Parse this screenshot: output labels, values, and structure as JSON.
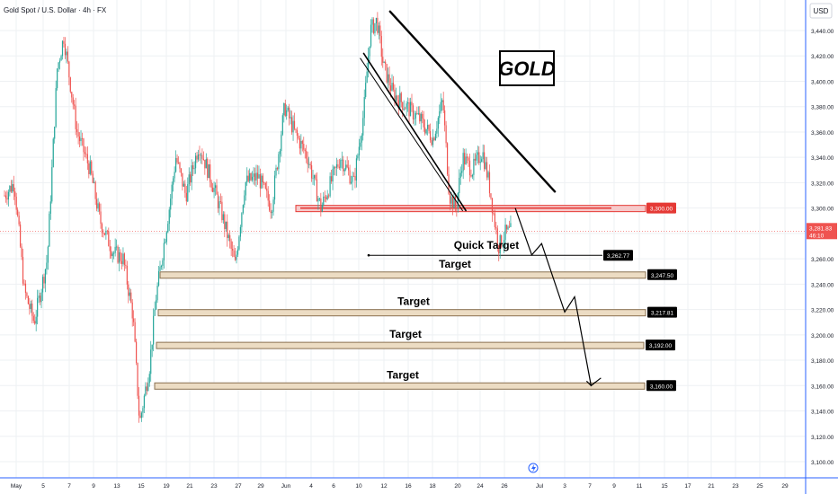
{
  "header": {
    "symbol_title": "Gold Spot / U.S. Dollar · 4h · FX",
    "currency": "USD"
  },
  "badge": {
    "text": "GOLD"
  },
  "colors": {
    "up": "#26a69a",
    "down": "#ef5350",
    "resistance": "#e53935",
    "resistance_fill": "#f6caca",
    "target_fill": "#ecdcc3",
    "target_stroke": "#8a7050",
    "axis_text": "#131722",
    "grid": "#eef0f3",
    "line": "#000000"
  },
  "chart_data": {
    "type": "candlestick",
    "title": "Gold Spot / U.S. Dollar · 4h · FX",
    "ylabel": "USD",
    "ylim": [
      3097,
      3458
    ],
    "x_ticks": [
      "May",
      "5",
      "7",
      "9",
      "13",
      "15",
      "19",
      "21",
      "23",
      "27",
      "29",
      "Jun",
      "4",
      "6",
      "10",
      "12",
      "16",
      "18",
      "20",
      "24",
      "26",
      "Jul",
      "3",
      "7",
      "9",
      "11",
      "15",
      "17",
      "21",
      "23",
      "25",
      "29"
    ],
    "y_ticks": [
      3100,
      3120,
      3140,
      3160,
      3180,
      3200,
      3220,
      3240,
      3260,
      3280,
      3300,
      3320,
      3340,
      3360,
      3380,
      3400,
      3420,
      3440
    ],
    "y_tick_labels": [
      "3,100.00",
      "3,120.00",
      "3,140.00",
      "3,160.00",
      "3,180.00",
      "3,200.00",
      "3,220.00",
      "3,240.00",
      "3,260.00",
      "3,280.00",
      "3,300.00",
      "3,320.00",
      "3,340.00",
      "3,360.00",
      "3,380.00",
      "3,400.00",
      "3,420.00",
      "3,440.00"
    ],
    "current_price": {
      "value": 3281.83,
      "label": "3,281.83",
      "countdown": "46:10"
    },
    "resistance": {
      "value": 3300.0,
      "label": "3,300.00"
    },
    "quick_target": {
      "value": 3262.77,
      "label": "3,262.77",
      "text": "Quick Target"
    },
    "targets": [
      {
        "value": 3247.5,
        "label": "3,247.50",
        "text": "Target"
      },
      {
        "value": 3217.81,
        "label": "3,217.81",
        "text": "Target"
      },
      {
        "value": 3192.0,
        "label": "3,192.00",
        "text": "Target"
      },
      {
        "value": 3160.0,
        "label": "3,160.00",
        "text": "Target"
      }
    ],
    "price_path": [
      {
        "t": 0.0,
        "p": 3310
      },
      {
        "t": 1.5,
        "p": 3320
      },
      {
        "t": 3.0,
        "p": 3235
      },
      {
        "t": 4.5,
        "p": 3210
      },
      {
        "t": 6.5,
        "p": 3260
      },
      {
        "t": 8.0,
        "p": 3410
      },
      {
        "t": 9.0,
        "p": 3435
      },
      {
        "t": 11.0,
        "p": 3360
      },
      {
        "t": 13.0,
        "p": 3330
      },
      {
        "t": 14.5,
        "p": 3290
      },
      {
        "t": 16.5,
        "p": 3265
      },
      {
        "t": 18.0,
        "p": 3260
      },
      {
        "t": 19.5,
        "p": 3215
      },
      {
        "t": 20.5,
        "p": 3130
      },
      {
        "t": 22.0,
        "p": 3175
      },
      {
        "t": 23.0,
        "p": 3230
      },
      {
        "t": 25.0,
        "p": 3300
      },
      {
        "t": 26.0,
        "p": 3340
      },
      {
        "t": 27.5,
        "p": 3310
      },
      {
        "t": 29.5,
        "p": 3350
      },
      {
        "t": 31.5,
        "p": 3320
      },
      {
        "t": 33.0,
        "p": 3295
      },
      {
        "t": 35.0,
        "p": 3255
      },
      {
        "t": 36.5,
        "p": 3320
      },
      {
        "t": 38.5,
        "p": 3325
      },
      {
        "t": 40.5,
        "p": 3300
      },
      {
        "t": 42.5,
        "p": 3380
      },
      {
        "t": 44.0,
        "p": 3360
      },
      {
        "t": 46.0,
        "p": 3340
      },
      {
        "t": 48.0,
        "p": 3300
      },
      {
        "t": 49.5,
        "p": 3320
      },
      {
        "t": 51.0,
        "p": 3340
      },
      {
        "t": 53.0,
        "p": 3320
      },
      {
        "t": 54.5,
        "p": 3375
      },
      {
        "t": 55.5,
        "p": 3440
      },
      {
        "t": 56.5,
        "p": 3448
      },
      {
        "t": 57.5,
        "p": 3412
      },
      {
        "t": 59.0,
        "p": 3390
      },
      {
        "t": 61.0,
        "p": 3380
      },
      {
        "t": 63.0,
        "p": 3370
      },
      {
        "t": 65.0,
        "p": 3355
      },
      {
        "t": 66.5,
        "p": 3385
      },
      {
        "t": 67.5,
        "p": 3310
      },
      {
        "t": 68.5,
        "p": 3300
      },
      {
        "t": 69.5,
        "p": 3340
      },
      {
        "t": 71.0,
        "p": 3330
      },
      {
        "t": 72.5,
        "p": 3345
      },
      {
        "t": 73.5,
        "p": 3320
      },
      {
        "t": 74.5,
        "p": 3285
      },
      {
        "t": 75.0,
        "p": 3270
      },
      {
        "t": 76.0,
        "p": 3280
      },
      {
        "t": 77.0,
        "p": 3282
      }
    ],
    "projection": [
      {
        "t": 77.5,
        "p": 3300
      },
      {
        "t": 80.0,
        "p": 3263
      },
      {
        "t": 81.5,
        "p": 3272
      },
      {
        "t": 85.0,
        "p": 3218
      },
      {
        "t": 86.5,
        "p": 3230
      },
      {
        "t": 89.0,
        "p": 3160
      },
      {
        "t": 90.5,
        "p": 3166
      }
    ],
    "channel_upper": [
      {
        "t": 58.5,
        "p": 3455
      },
      {
        "t": 83.5,
        "p": 3313
      }
    ],
    "channel_lower": [
      {
        "t": 54.5,
        "p": 3422
      },
      {
        "t": 70.0,
        "p": 3298
      }
    ],
    "channel_lower_inner": [
      {
        "t": 54.0,
        "p": 3418
      },
      {
        "t": 69.5,
        "p": 3298
      }
    ]
  }
}
